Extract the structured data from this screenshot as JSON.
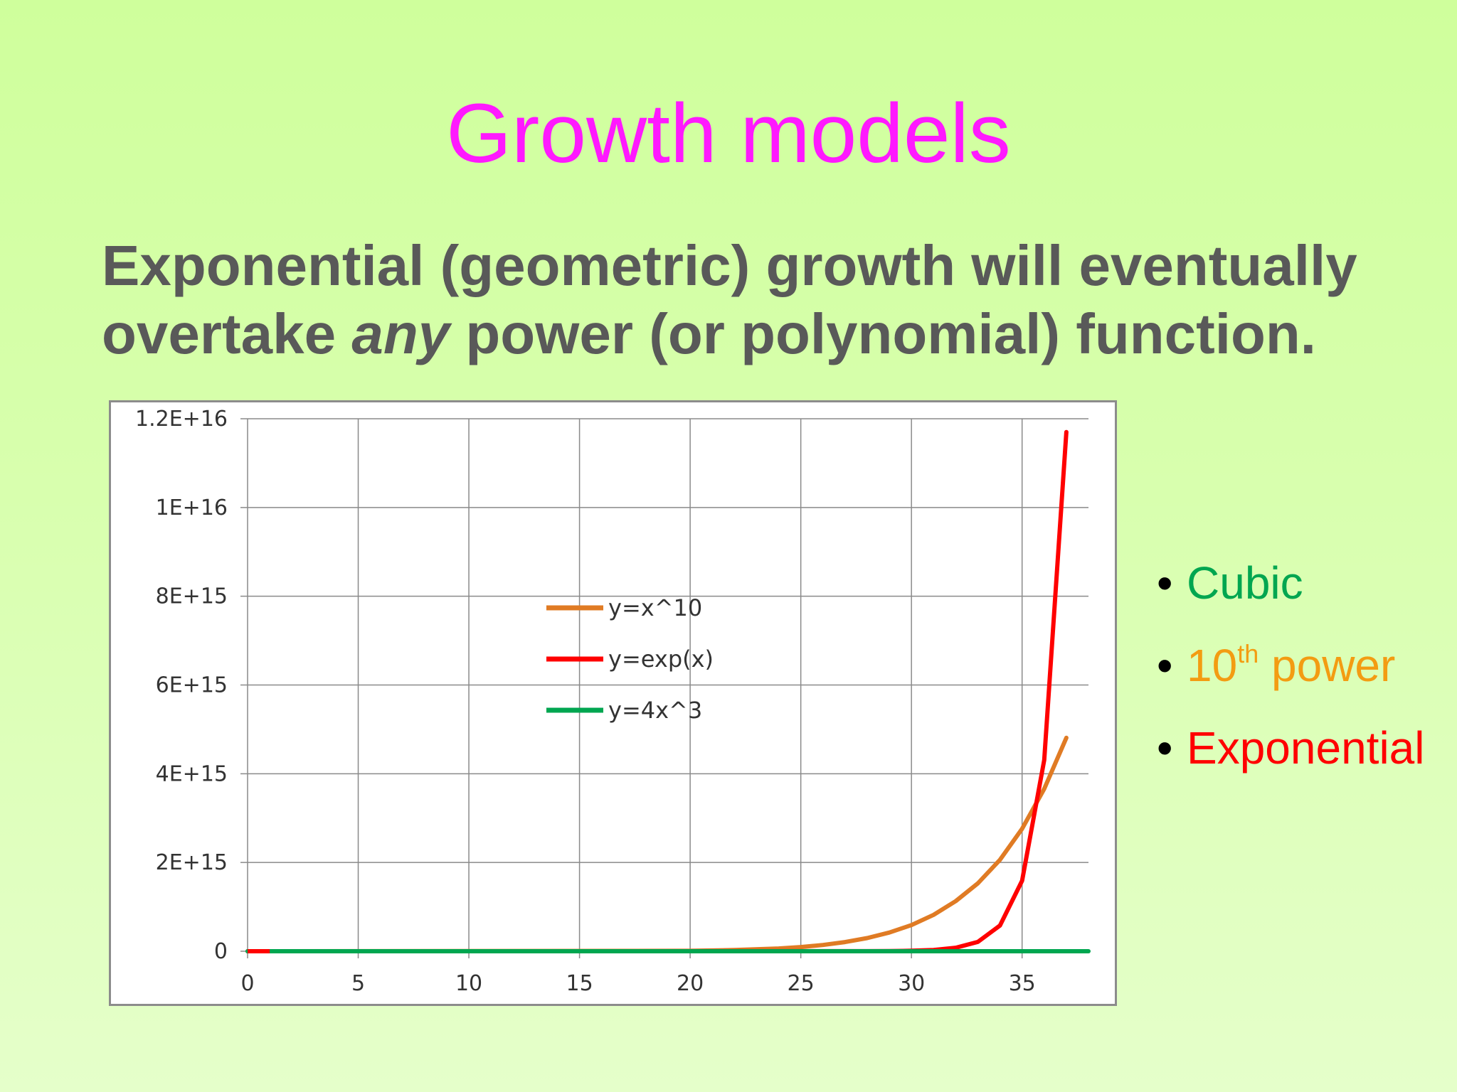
{
  "slide": {
    "title": "Growth models",
    "subtitle_before": "Exponential (geometric) growth will eventually overtake ",
    "subtitle_emphasis": "any",
    "subtitle_after": " power (or polynomial) function.",
    "background_colors": [
      "#cfff9c",
      "#e5ffca"
    ],
    "title_color": "#ff19ff",
    "subtitle_color": "#595959"
  },
  "bullets": [
    {
      "text": "Cubic",
      "sup": "",
      "rest": "",
      "color": "#00a650"
    },
    {
      "text": "10",
      "sup": "th",
      "rest": " power",
      "color": "#f39c12"
    },
    {
      "text": "Exponential",
      "sup": "",
      "rest": "",
      "color": "#ff0000"
    }
  ],
  "chart_data": {
    "type": "line",
    "title": "",
    "xlabel": "",
    "ylabel": "",
    "xlim": [
      0,
      38
    ],
    "ylim": [
      0,
      1.2e+16
    ],
    "x_ticks": [
      0,
      5,
      10,
      15,
      20,
      25,
      30,
      35
    ],
    "x_tick_labels": [
      "0",
      "5",
      "10",
      "15",
      "20",
      "25",
      "30",
      "35"
    ],
    "y_ticks": [
      0,
      2000000000000000.0,
      4000000000000000.0,
      6000000000000000.0,
      8000000000000000.0,
      1e+16,
      1.2e+16
    ],
    "y_tick_labels": [
      "0",
      "2E+15",
      "4E+15",
      "6E+15",
      "8E+15",
      "1E+16",
      "1.2E+16"
    ],
    "grid": true,
    "legend_position": "center",
    "series": [
      {
        "name": "y=x^10",
        "color": "#e07b24",
        "x": [
          0,
          20,
          22,
          24,
          25,
          26,
          27,
          28,
          29,
          30,
          31,
          32,
          33,
          34,
          35,
          36,
          37
        ],
        "y": [
          0,
          10000000000000.0,
          27000000000000.0,
          63000000000000.0,
          95000000000000.0,
          141000000000000.0,
          206000000000000.0,
          296000000000000.0,
          421000000000000.0,
          590000000000000.0,
          820000000000000.0,
          1130000000000000.0,
          1530000000000000.0,
          2060000000000000.0,
          2760000000000000.0,
          3660000000000000.0,
          4810000000000000.0
        ]
      },
      {
        "name": "y=exp(x)",
        "color": "#ff0000",
        "x": [
          0,
          28,
          29,
          30,
          31,
          32,
          33,
          34,
          35,
          36,
          37
        ],
        "y": [
          0,
          1400000000000.0,
          3900000000000.0,
          10700000000000.0,
          29000000000000.0,
          79000000000000.0,
          210000000000000.0,
          580000000000000.0,
          1590000000000000.0,
          4310000000000000.0,
          1.17e+16
        ]
      },
      {
        "name": "y=4x^3",
        "color": "#00a650",
        "x": [
          0,
          38
        ],
        "y": [
          0,
          0
        ]
      }
    ]
  }
}
